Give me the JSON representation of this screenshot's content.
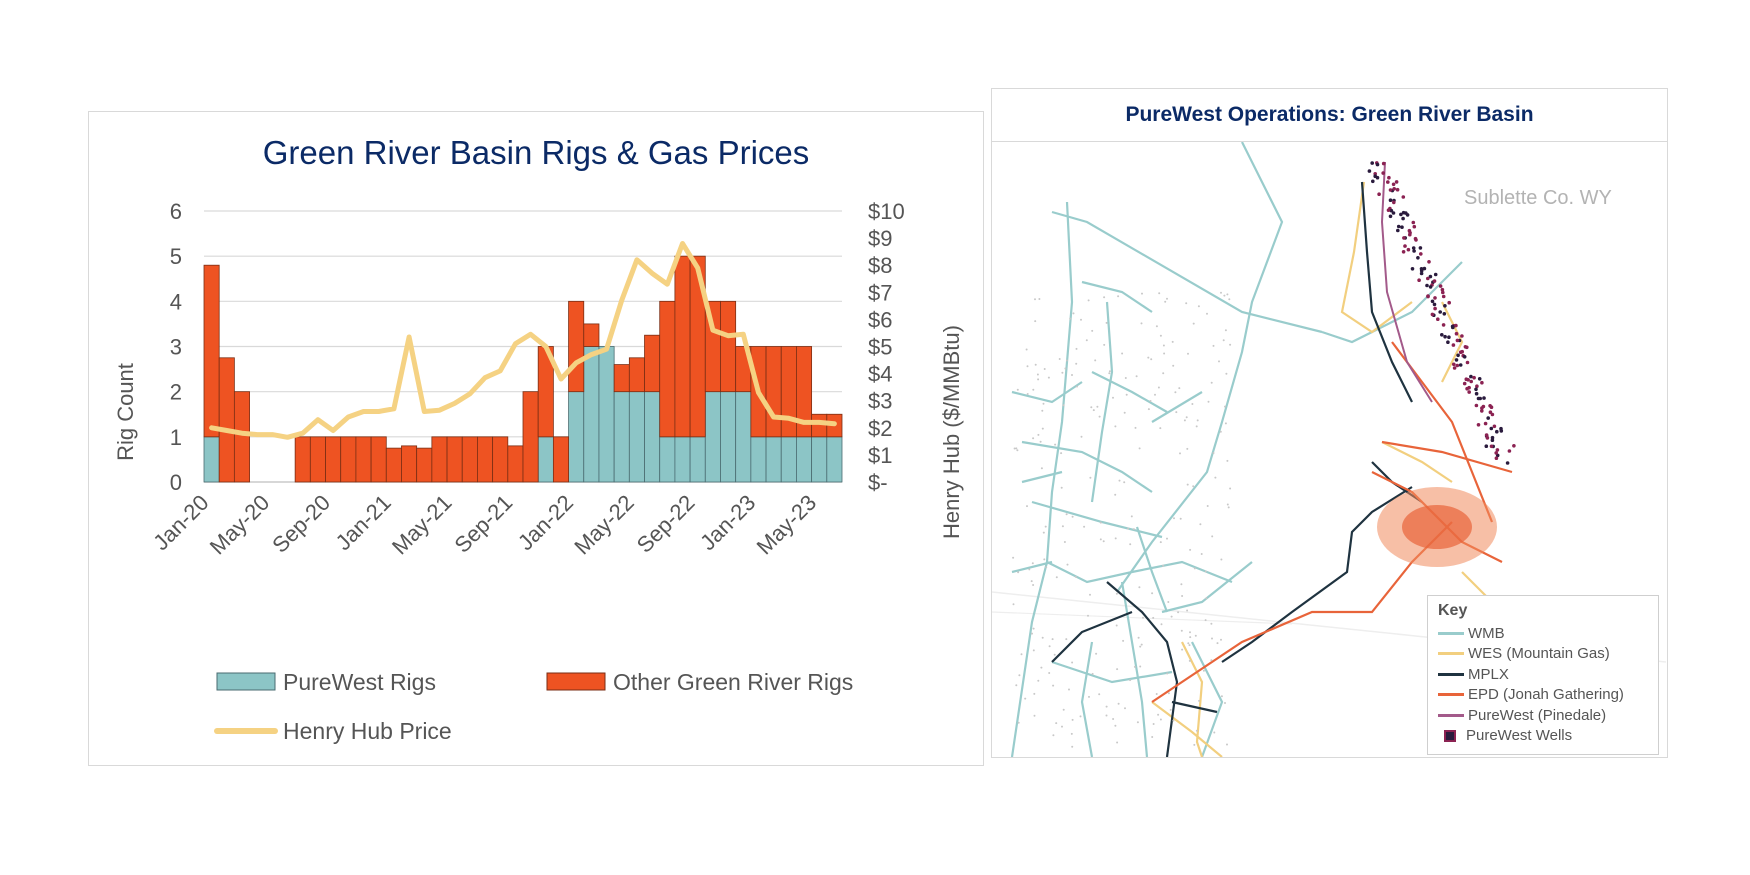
{
  "chart_data": {
    "type": "bar",
    "title": "Green River Basin Rigs & Gas Prices",
    "ylabel": "Rig Count",
    "y2label": "Henry Hub ($/MMBtu)",
    "ylim": [
      0,
      6
    ],
    "y2lim": [
      0,
      10
    ],
    "yticks": [
      "0",
      "1",
      "2",
      "3",
      "4",
      "5",
      "6"
    ],
    "y2ticks": [
      "$-",
      "$1",
      "$2",
      "$3",
      "$4",
      "$5",
      "$6",
      "$7",
      "$8",
      "$9",
      "$10"
    ],
    "xticklabels": [
      "Jan-20",
      "May-20",
      "Sep-20",
      "Jan-21",
      "May-21",
      "Sep-21",
      "Jan-22",
      "May-22",
      "Sep-22",
      "Jan-23",
      "May-23"
    ],
    "categories": [
      "Jan-20",
      "Feb-20",
      "Mar-20",
      "Apr-20",
      "May-20",
      "Jun-20",
      "Jul-20",
      "Aug-20",
      "Sep-20",
      "Oct-20",
      "Nov-20",
      "Dec-20",
      "Jan-21",
      "Feb-21",
      "Mar-21",
      "Apr-21",
      "May-21",
      "Jun-21",
      "Jul-21",
      "Aug-21",
      "Sep-21",
      "Oct-21",
      "Nov-21",
      "Dec-21",
      "Jan-22",
      "Feb-22",
      "Mar-22",
      "Apr-22",
      "May-22",
      "Jun-22",
      "Jul-22",
      "Aug-22",
      "Sep-22",
      "Oct-22",
      "Nov-22",
      "Dec-22",
      "Jan-23",
      "Feb-23",
      "Mar-23",
      "Apr-23",
      "May-23",
      "Jun-23"
    ],
    "series": [
      {
        "name": "PureWest Rigs",
        "kind": "bar",
        "color": "#8cc5c6",
        "values": [
          1,
          0,
          0,
          0,
          0,
          0,
          0,
          0,
          0,
          0,
          0,
          0,
          0,
          0,
          0,
          0,
          0,
          0,
          0,
          0,
          0,
          0,
          1,
          0,
          2,
          3,
          3,
          2,
          2,
          2,
          1,
          1,
          1,
          2,
          2,
          2,
          1,
          1,
          1,
          1,
          1,
          1
        ]
      },
      {
        "name": "Other Green River Rigs",
        "kind": "bar",
        "color": "#ee5322",
        "values": [
          3.8,
          2.75,
          2,
          0,
          0,
          0,
          1,
          1,
          1,
          1,
          1,
          1,
          0.75,
          0.8,
          0.75,
          1,
          1,
          1,
          1,
          1,
          0.8,
          2,
          2,
          1,
          2,
          0.5,
          0,
          0.6,
          0.75,
          1.25,
          3,
          4,
          4,
          2,
          2,
          1,
          2,
          2,
          2,
          2,
          0.5,
          0.5
        ]
      },
      {
        "name": "Henry Hub Price",
        "kind": "line",
        "axis": "right",
        "color": "#f5d283",
        "values": [
          2.0,
          1.9,
          1.8,
          1.75,
          1.75,
          1.65,
          1.8,
          2.3,
          1.9,
          2.4,
          2.6,
          2.6,
          2.7,
          5.35,
          2.6,
          2.65,
          2.9,
          3.25,
          3.85,
          4.1,
          5.1,
          5.45,
          5.0,
          3.8,
          4.4,
          4.7,
          4.9,
          6.7,
          8.2,
          7.7,
          7.3,
          8.8,
          7.9,
          5.6,
          5.4,
          5.45,
          3.3,
          2.4,
          2.35,
          2.2,
          2.2,
          2.15
        ]
      }
    ]
  },
  "map": {
    "title": "PureWest Operations: Green River Basin",
    "region_label": "Sublette Co. WY",
    "key_title": "Key",
    "key_items": [
      {
        "label": "WMB",
        "color": "#99cccc"
      },
      {
        "label": "WES (Mountain Gas)",
        "color": "#f2cf7f"
      },
      {
        "label": "MPLX",
        "color": "#1f3340"
      },
      {
        "label": "EPD (Jonah Gathering)",
        "color": "#e8643a"
      },
      {
        "label": "PureWest (Pinedale)",
        "color": "#a35a8a"
      },
      {
        "label": "PureWest Wells",
        "color": "#2a1b3d"
      }
    ]
  }
}
